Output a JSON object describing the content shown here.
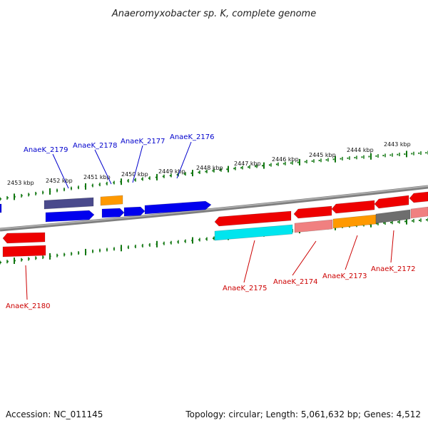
{
  "title": "Anaeromyxobacter sp. K, complete genome",
  "footer": {
    "accession": "Accession: NC_011145",
    "stats": "Topology: circular; Length: 5,061,632 bp; Genes: 4,512"
  },
  "colors": {
    "upper_label": "#0000cc",
    "lower_label": "#cc0000",
    "tick": "#117711",
    "backbone": "#7f7f7f"
  },
  "scale_ticks": [
    {
      "label": "2453 kbp"
    },
    {
      "label": "2452 kbp"
    },
    {
      "label": "2451 kbp"
    },
    {
      "label": "2450 kbp"
    },
    {
      "label": "2449 kbp"
    },
    {
      "label": "2448 kbp"
    },
    {
      "label": "2447 kbp"
    },
    {
      "label": "2446 kbp"
    },
    {
      "label": "2445 kbp"
    },
    {
      "label": "2444 kbp"
    },
    {
      "label": "2443 kbp"
    }
  ],
  "gene_labels_upper": [
    {
      "text": "AnaeK_2179"
    },
    {
      "text": "AnaeK_2178"
    },
    {
      "text": "AnaeK_2177"
    },
    {
      "text": "AnaeK_2176"
    }
  ],
  "gene_labels_lower": [
    {
      "text": "AnaeK_2180"
    },
    {
      "text": "AnaeK_2175"
    },
    {
      "text": "AnaeK_2174"
    },
    {
      "text": "AnaeK_2173"
    },
    {
      "text": "AnaeK_2172"
    }
  ],
  "features": [
    {
      "name": "gene-arrow",
      "color": "#4a4a8c",
      "dir": "none"
    },
    {
      "name": "gene-arrow",
      "color": "#0000ee",
      "dir": "right"
    },
    {
      "name": "gene-arrow",
      "color": "#ff9900",
      "dir": "none"
    },
    {
      "name": "gene-arrow",
      "color": "#0000ee",
      "dir": "right"
    },
    {
      "name": "gene-arrow",
      "color": "#0000ee",
      "dir": "right"
    },
    {
      "name": "gene-arrow",
      "color": "#0000ee",
      "dir": "right"
    },
    {
      "name": "gene-arrow",
      "color": "#ee0000",
      "dir": "left"
    },
    {
      "name": "gene-arrow",
      "color": "#ee0000",
      "dir": "none"
    },
    {
      "name": "gene-arrow",
      "color": "#ee0000",
      "dir": "left"
    },
    {
      "name": "gene-arrow",
      "color": "#00e5ee",
      "dir": "none"
    },
    {
      "name": "gene-arrow",
      "color": "#ee0000",
      "dir": "left"
    },
    {
      "name": "gene-arrow",
      "color": "#f08080",
      "dir": "none"
    },
    {
      "name": "gene-arrow",
      "color": "#ee0000",
      "dir": "left"
    },
    {
      "name": "gene-arrow",
      "color": "#ff9900",
      "dir": "none"
    },
    {
      "name": "gene-arrow",
      "color": "#ee0000",
      "dir": "left"
    },
    {
      "name": "gene-arrow",
      "color": "#6e6e6e",
      "dir": "none"
    },
    {
      "name": "gene-arrow",
      "color": "#ee0000",
      "dir": "left"
    },
    {
      "name": "gene-arrow",
      "color": "#f08080",
      "dir": "none"
    },
    {
      "name": "gene-arrow",
      "color": "#0000ee",
      "dir": "right"
    }
  ]
}
